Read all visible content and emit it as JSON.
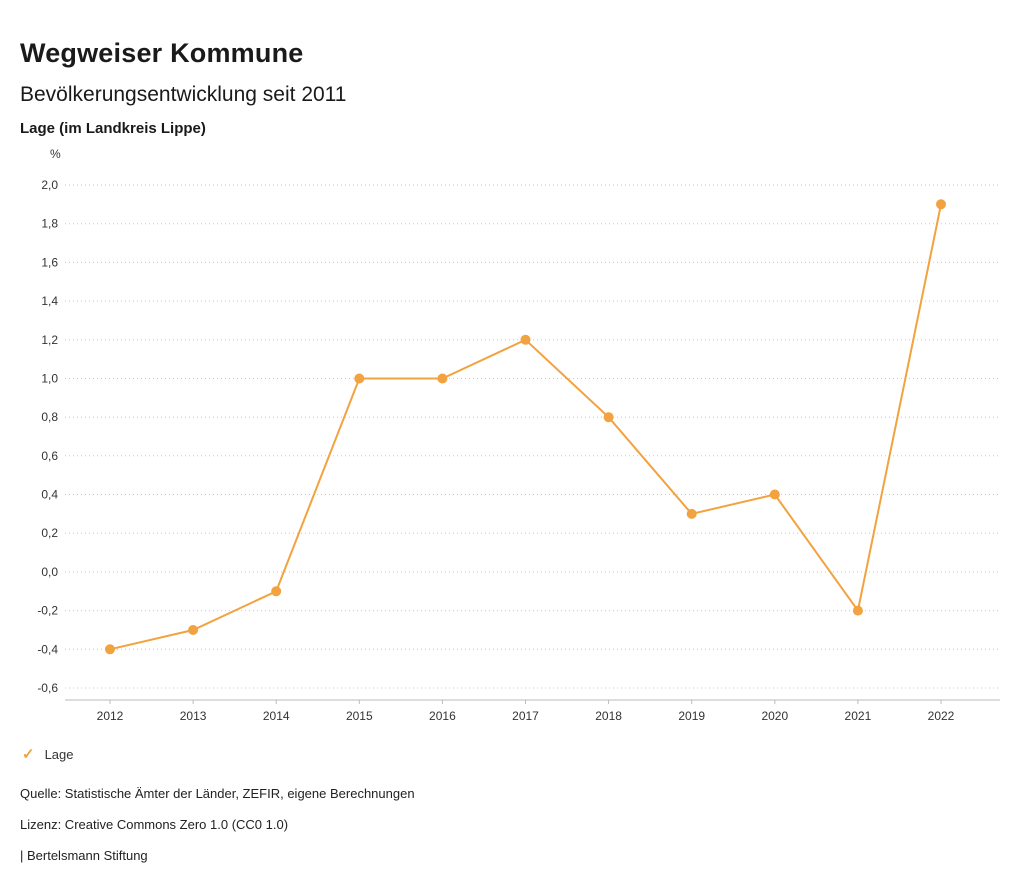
{
  "header": {
    "title": "Wegweiser Kommune",
    "subtitle": "Bevölkerungsentwicklung seit 2011",
    "region": "Lage (im Landkreis Lippe)"
  },
  "chart_data": {
    "type": "line",
    "title": "Bevölkerungsentwicklung seit 2011",
    "subtitle": "Lage (im Landkreis Lippe)",
    "unit": "%",
    "xlabel": "",
    "ylabel": "%",
    "categories": [
      "2012",
      "2013",
      "2014",
      "2015",
      "2016",
      "2017",
      "2018",
      "2019",
      "2020",
      "2021",
      "2022"
    ],
    "series": [
      {
        "name": "Lage",
        "values": [
          -0.4,
          -0.3,
          -0.1,
          1.0,
          1.0,
          1.2,
          0.8,
          0.3,
          0.4,
          -0.2,
          1.9
        ],
        "color": "#f2a23e"
      }
    ],
    "ylim": [
      -0.6,
      2.0
    ],
    "ytick_step": 0.2,
    "yticks": [
      "2,0",
      "1,8",
      "1,6",
      "1,4",
      "1,2",
      "1,0",
      "0,8",
      "0,6",
      "0,4",
      "0,2",
      "0,0",
      "-0,2",
      "-0,4",
      "-0,6"
    ],
    "grid": true,
    "legend_position": "bottom-left",
    "legend": {
      "check": "✓",
      "label": "Lage"
    }
  },
  "footer": {
    "source": "Quelle: Statistische Ämter der Länder, ZEFIR, eigene Berechnungen",
    "license": "Lizenz: Creative Commons Zero 1.0 (CC0 1.0)",
    "attribution": "| Bertelsmann Stiftung"
  },
  "colors": {
    "accent": "#f2a23e",
    "grid": "#c9c9c9",
    "axis": "#bbbbbb",
    "text": "#1a1a1a"
  }
}
